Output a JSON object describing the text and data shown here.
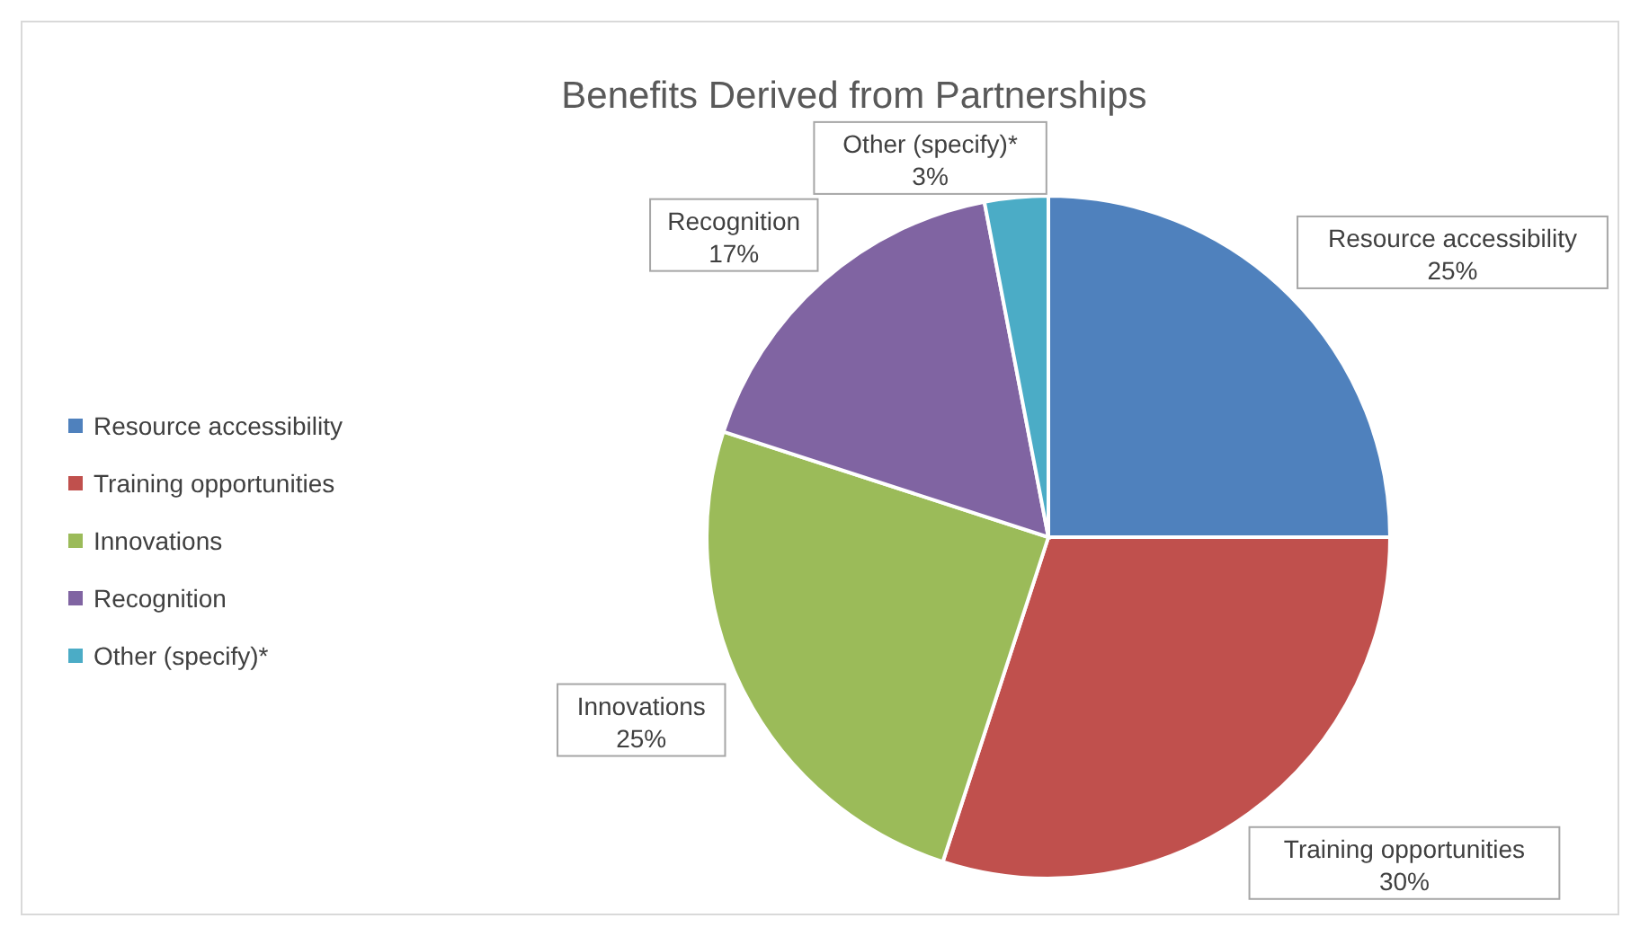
{
  "chart_data": {
    "type": "pie",
    "title": "Benefits Derived from Partnerships",
    "categories": [
      "Resource accessibility",
      "Training opportunities",
      "Innovations",
      "Recognition",
      "Other (specify)*"
    ],
    "values": [
      25,
      30,
      25,
      17,
      3
    ],
    "colors": [
      "#4f81bd",
      "#c0504d",
      "#9bbb59",
      "#8064a2",
      "#4bacc6"
    ],
    "value_labels": [
      "25%",
      "30%",
      "25%",
      "17%",
      "3%"
    ],
    "legend": "left"
  }
}
